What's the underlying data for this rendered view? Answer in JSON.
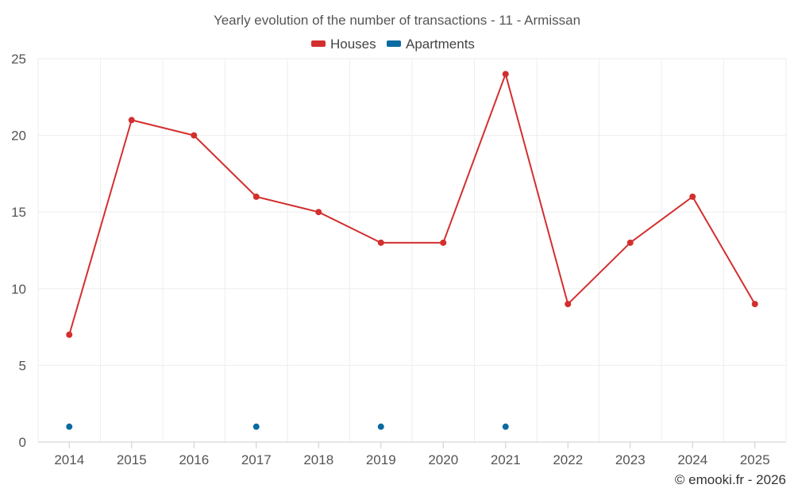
{
  "chart_data": {
    "type": "line",
    "title": "Yearly evolution of the number of transactions - 11 - Armissan",
    "xlabel": "",
    "ylabel": "",
    "categories": [
      "2014",
      "2015",
      "2016",
      "2017",
      "2018",
      "2019",
      "2020",
      "2021",
      "2022",
      "2023",
      "2024",
      "2025"
    ],
    "ylim": [
      0,
      25
    ],
    "yticks": [
      0,
      5,
      10,
      15,
      20,
      25
    ],
    "grid": true,
    "legend_position": "top-center",
    "series": [
      {
        "name": "Houses",
        "color": "#d32f2f",
        "values": [
          7,
          21,
          20,
          16,
          15,
          13,
          13,
          24,
          9,
          13,
          16,
          9
        ]
      },
      {
        "name": "Apartments",
        "color": "#0a6aa1",
        "values": [
          1,
          null,
          null,
          1,
          null,
          1,
          null,
          1,
          null,
          null,
          null,
          null
        ]
      }
    ],
    "credit": "© emooki.fr - 2026"
  }
}
